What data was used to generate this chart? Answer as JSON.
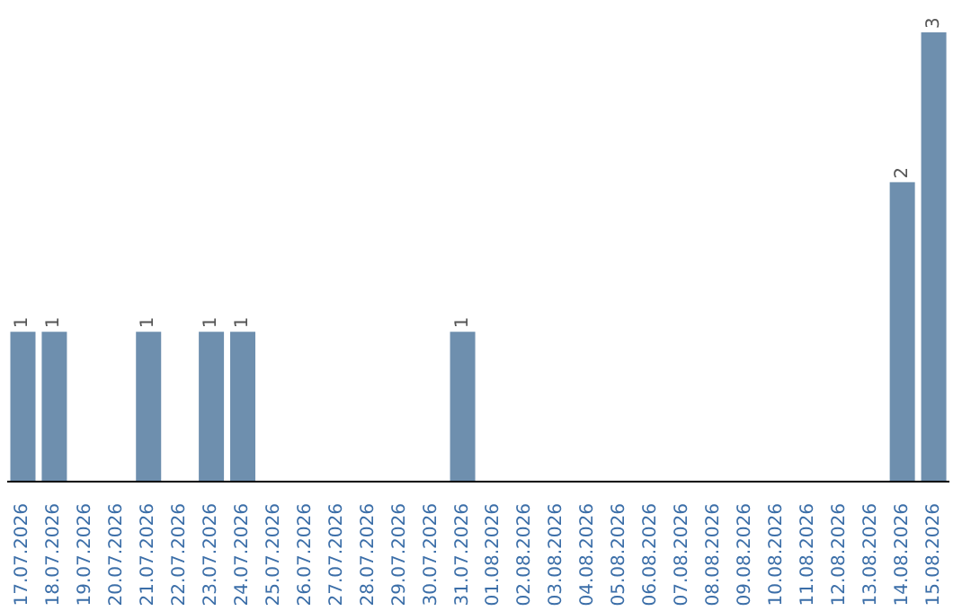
{
  "chart_data": {
    "type": "bar",
    "categories": [
      "17.07.2026",
      "18.07.2026",
      "19.07.2026",
      "20.07.2026",
      "21.07.2026",
      "22.07.2026",
      "23.07.2026",
      "24.07.2026",
      "25.07.2026",
      "26.07.2026",
      "27.07.2026",
      "28.07.2026",
      "29.07.2026",
      "30.07.2026",
      "31.07.2026",
      "01.08.2026",
      "02.08.2026",
      "03.08.2026",
      "04.08.2026",
      "05.08.2026",
      "06.08.2026",
      "07.08.2026",
      "08.08.2026",
      "09.08.2026",
      "10.08.2026",
      "11.08.2026",
      "12.08.2026",
      "13.08.2026",
      "14.08.2026",
      "15.08.2026"
    ],
    "values": [
      1,
      1,
      0,
      0,
      1,
      0,
      1,
      1,
      0,
      0,
      0,
      0,
      0,
      0,
      1,
      0,
      0,
      0,
      0,
      0,
      0,
      0,
      0,
      0,
      0,
      0,
      0,
      0,
      2,
      3
    ],
    "value_labels": [
      "1",
      "1",
      null,
      null,
      "1",
      null,
      "1",
      "1",
      null,
      null,
      null,
      null,
      null,
      null,
      "1",
      null,
      null,
      null,
      null,
      null,
      null,
      null,
      null,
      null,
      null,
      null,
      null,
      null,
      "2",
      "3"
    ],
    "color": "#6e8fae",
    "tick_labels": "x"
  }
}
